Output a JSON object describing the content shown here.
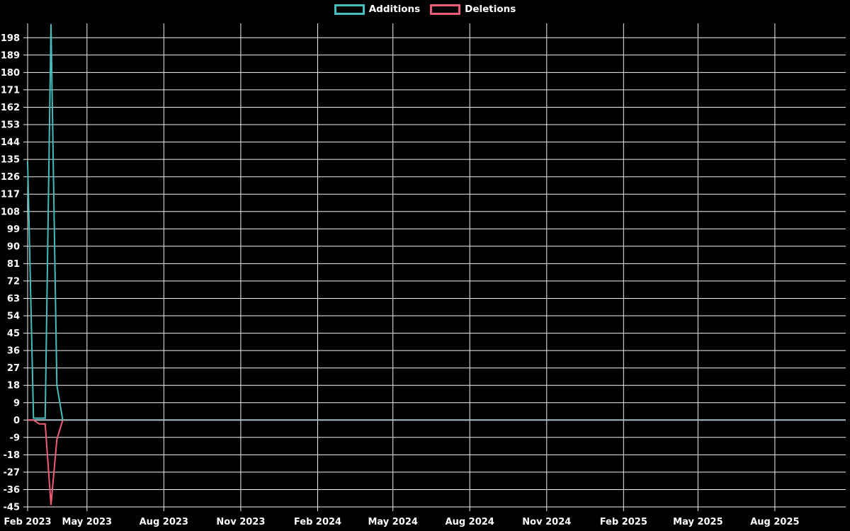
{
  "legend": {
    "items": [
      {
        "label": "Additions"
      },
      {
        "label": "Deletions"
      }
    ]
  },
  "chart_data": {
    "type": "line",
    "title": "",
    "xlabel": "",
    "ylabel": "",
    "grid": true,
    "legend_position": "top",
    "background_color": "#000000",
    "grid_color": "#f2f2f2",
    "zero_line_color": "#a9bfc4",
    "text_color": "#ffffff",
    "y_axis": {
      "tick_min": -45,
      "tick_max": 198,
      "tick_step": 9,
      "tick_labels": [
        198,
        189,
        180,
        171,
        162,
        153,
        144,
        135,
        126,
        117,
        108,
        99,
        90,
        81,
        72,
        63,
        54,
        45,
        36,
        27,
        18,
        9,
        0,
        -9,
        -18,
        -27,
        -36,
        -45
      ],
      "ylim": [
        -46.5,
        205.5
      ]
    },
    "x_axis": {
      "start_date": "2023-02-19",
      "end_date": "2025-10-26",
      "tick_dates": [
        "2023-02-19",
        "2023-05-01",
        "2023-08-01",
        "2023-11-01",
        "2024-02-01",
        "2024-05-01",
        "2024-08-01",
        "2024-11-01",
        "2025-02-01",
        "2025-05-01",
        "2025-08-01"
      ],
      "tick_labels": [
        "Feb 2023",
        "May 2023",
        "Aug 2023",
        "Nov 2023",
        "Feb 2024",
        "May 2024",
        "Aug 2024",
        "Nov 2024",
        "Feb 2025",
        "May 2025",
        "Aug 2025"
      ]
    },
    "series": [
      {
        "name": "Additions",
        "color": "#46bdbd",
        "points": [
          [
            "2023-02-19",
            134
          ],
          [
            "2023-02-26",
            1
          ],
          [
            "2023-03-05",
            1
          ],
          [
            "2023-03-12",
            1
          ],
          [
            "2023-03-19",
            205
          ],
          [
            "2023-03-26",
            18
          ],
          [
            "2023-04-02",
            0
          ]
        ],
        "flat_zero_until": "2025-10-26"
      },
      {
        "name": "Deletions",
        "color": "#f05c78",
        "points": [
          [
            "2023-02-19",
            0
          ],
          [
            "2023-02-26",
            0
          ],
          [
            "2023-03-05",
            -2
          ],
          [
            "2023-03-12",
            -2
          ],
          [
            "2023-03-19",
            -44
          ],
          [
            "2023-03-26",
            -10
          ],
          [
            "2023-04-02",
            0
          ]
        ],
        "flat_zero_until": "2025-10-26"
      }
    ]
  }
}
